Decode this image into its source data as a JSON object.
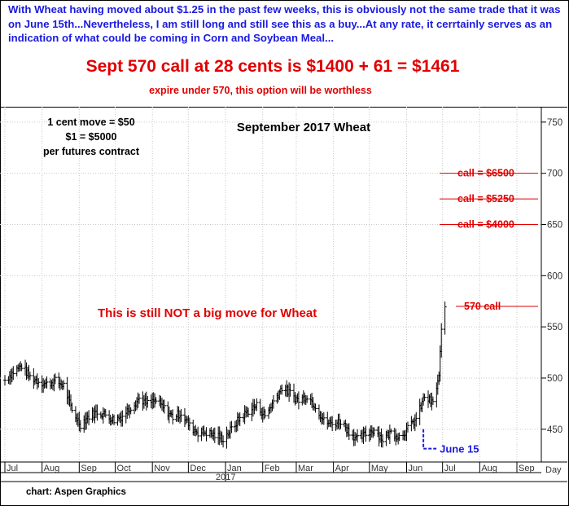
{
  "header": {
    "note": "With Wheat having moved about $1.25 in the past few weeks, this is obviously not the same trade that it was on June 15th...Nevertheless, I am still long and still see this as a buy...At any rate, it cerrtainly serves as an indication of what could be coming in Corn and Soybean Meal...",
    "headline": "Sept 570 call at 28 cents is $1400 + 61 = $1461",
    "subline": "expire under 570, this option will be worthless"
  },
  "footer": {
    "credit": "chart: Aspen Graphics"
  },
  "colors": {
    "annotation_red": "#e00000",
    "annotation_blue": "#1a1ae0",
    "bars": "#000000",
    "grid": "#cccccc"
  },
  "chart_data": {
    "type": "ohlc",
    "title": "September 2017 Wheat",
    "notes": [
      "1 cent move = $50",
      "$1 = $5000",
      "per futures contract"
    ],
    "x_axis_label": "Day",
    "x_ticks": [
      "Jul",
      "Aug",
      "Sep",
      "Oct",
      "Nov",
      "Dec",
      "Jan",
      "Feb",
      "Mar",
      "Apr",
      "May",
      "Jun",
      "Jul",
      "Aug",
      "Sep"
    ],
    "year_label": "2017",
    "y_ticks": [
      450,
      500,
      550,
      600,
      650,
      700,
      750
    ],
    "ylim": [
      418,
      765
    ],
    "grid": true,
    "annotations": [
      {
        "text": "This is still NOT a big move for Wheat"
      },
      {
        "text": "570 call",
        "level": 570
      },
      {
        "text": "call = $4000",
        "level": 650
      },
      {
        "text": "call = $5250",
        "level": 675
      },
      {
        "text": "call = $6500",
        "level": 700
      },
      {
        "text": "June 15",
        "date": "2017-06-15"
      }
    ],
    "price_path": [
      {
        "date": "2016-07-01",
        "close": 498
      },
      {
        "date": "2016-07-08",
        "close": 506
      },
      {
        "date": "2016-07-15",
        "close": 512
      },
      {
        "date": "2016-07-22",
        "close": 501
      },
      {
        "date": "2016-07-29",
        "close": 497
      },
      {
        "date": "2016-08-05",
        "close": 494
      },
      {
        "date": "2016-08-12",
        "close": 497
      },
      {
        "date": "2016-08-19",
        "close": 493
      },
      {
        "date": "2016-08-26",
        "close": 468
      },
      {
        "date": "2016-09-02",
        "close": 455
      },
      {
        "date": "2016-09-09",
        "close": 463
      },
      {
        "date": "2016-09-16",
        "close": 467
      },
      {
        "date": "2016-09-23",
        "close": 464
      },
      {
        "date": "2016-09-30",
        "close": 459
      },
      {
        "date": "2016-10-07",
        "close": 463
      },
      {
        "date": "2016-10-14",
        "close": 472
      },
      {
        "date": "2016-10-21",
        "close": 480
      },
      {
        "date": "2016-10-28",
        "close": 475
      },
      {
        "date": "2016-11-04",
        "close": 478
      },
      {
        "date": "2016-11-11",
        "close": 470
      },
      {
        "date": "2016-11-18",
        "close": 462
      },
      {
        "date": "2016-11-25",
        "close": 466
      },
      {
        "date": "2016-12-02",
        "close": 453
      },
      {
        "date": "2016-12-09",
        "close": 447
      },
      {
        "date": "2016-12-16",
        "close": 447
      },
      {
        "date": "2016-12-23",
        "close": 444
      },
      {
        "date": "2016-12-30",
        "close": 441
      },
      {
        "date": "2017-01-06",
        "close": 450
      },
      {
        "date": "2017-01-13",
        "close": 461
      },
      {
        "date": "2017-01-20",
        "close": 468
      },
      {
        "date": "2017-01-27",
        "close": 473
      },
      {
        "date": "2017-02-03",
        "close": 463
      },
      {
        "date": "2017-02-10",
        "close": 477
      },
      {
        "date": "2017-02-17",
        "close": 491
      },
      {
        "date": "2017-02-24",
        "close": 485
      },
      {
        "date": "2017-03-03",
        "close": 478
      },
      {
        "date": "2017-03-10",
        "close": 483
      },
      {
        "date": "2017-03-17",
        "close": 473
      },
      {
        "date": "2017-03-24",
        "close": 458
      },
      {
        "date": "2017-03-31",
        "close": 455
      },
      {
        "date": "2017-04-07",
        "close": 458
      },
      {
        "date": "2017-04-14",
        "close": 448
      },
      {
        "date": "2017-04-21",
        "close": 440
      },
      {
        "date": "2017-04-28",
        "close": 445
      },
      {
        "date": "2017-05-05",
        "close": 450
      },
      {
        "date": "2017-05-12",
        "close": 440
      },
      {
        "date": "2017-05-19",
        "close": 447
      },
      {
        "date": "2017-05-26",
        "close": 443
      },
      {
        "date": "2017-06-02",
        "close": 450
      },
      {
        "date": "2017-06-09",
        "close": 460
      },
      {
        "date": "2017-06-16",
        "close": 482
      },
      {
        "date": "2017-06-23",
        "close": 475
      },
      {
        "date": "2017-06-28",
        "close": 502
      },
      {
        "date": "2017-06-30",
        "close": 545
      },
      {
        "date": "2017-07-03",
        "close": 568
      }
    ]
  }
}
